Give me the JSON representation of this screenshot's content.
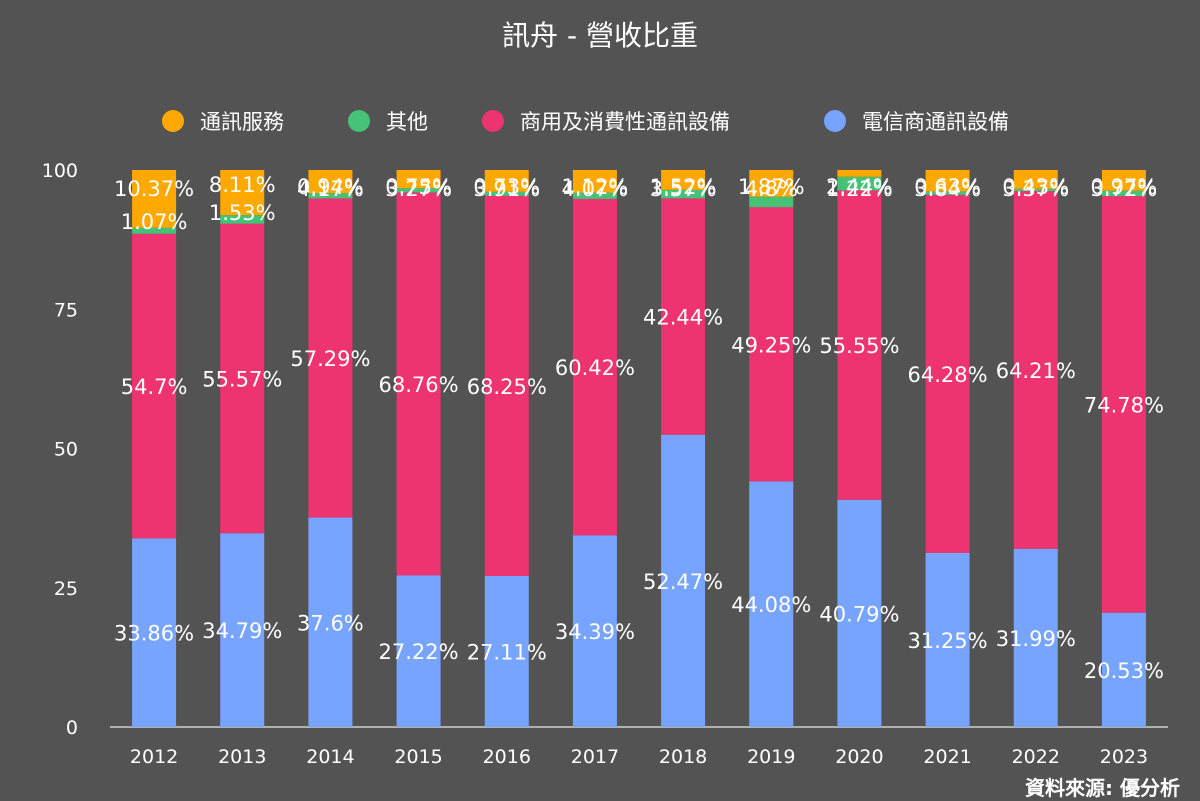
{
  "title": "訊舟 - 營收比重",
  "source_note": "資料來源: 優分析",
  "colors": {
    "background": "#535353",
    "axis": "#cfcfcf",
    "gridline": "#8a8a8a",
    "text": "#ffffff"
  },
  "chart_data": {
    "type": "bar",
    "stacked": true,
    "categories": [
      "2012",
      "2013",
      "2014",
      "2015",
      "2016",
      "2017",
      "2018",
      "2019",
      "2020",
      "2021",
      "2022",
      "2023"
    ],
    "ylim": [
      0,
      100
    ],
    "yticks": [
      0,
      25,
      50,
      75,
      100
    ],
    "legend_position": "top",
    "series": [
      {
        "name": "通訊服務",
        "color": "#FFA800",
        "values": [
          10.37,
          8.11,
          4.17,
          3.27,
          3.91,
          4.07,
          3.57,
          4.8,
          1.22,
          3.84,
          3.37,
          3.72
        ],
        "labels": [
          "10.37%",
          "8.11%",
          "4.17%",
          "3.27%",
          "3.91%",
          "4.07%",
          "3.57%",
          "4.8%",
          "1.22%",
          "3.84%",
          "3.37%",
          "3.72%"
        ]
      },
      {
        "name": "其他",
        "color": "#46C277",
        "values": [
          1.07,
          1.53,
          0.94,
          0.75,
          0.73,
          1.12,
          1.52,
          1.87,
          2.44,
          0.63,
          0.43,
          0.97
        ],
        "labels": [
          "1.07%",
          "1.53%",
          "0.94%",
          "0.75%",
          "0.73%",
          "1.12%",
          "1.52%",
          "1.87%",
          "2.44%",
          "0.63%",
          "0.43%",
          "0.97%"
        ]
      },
      {
        "name": "商用及消費性通訊設備",
        "color": "#EE3371",
        "values": [
          54.7,
          55.57,
          57.29,
          68.76,
          68.25,
          60.42,
          42.44,
          49.25,
          55.55,
          64.28,
          64.21,
          74.78
        ],
        "labels": [
          "54.7%",
          "55.57%",
          "57.29%",
          "68.76%",
          "68.25%",
          "60.42%",
          "42.44%",
          "49.25%",
          "55.55%",
          "64.28%",
          "64.21%",
          "74.78%"
        ]
      },
      {
        "name": "電信商通訊設備",
        "color": "#77A4FF",
        "values": [
          33.86,
          34.79,
          37.6,
          27.22,
          27.11,
          34.39,
          52.47,
          44.08,
          40.79,
          31.25,
          31.99,
          20.53
        ],
        "labels": [
          "33.86%",
          "34.79%",
          "37.6%",
          "27.22%",
          "27.11%",
          "34.39%",
          "52.47%",
          "44.08%",
          "40.79%",
          "31.25%",
          "31.99%",
          "20.53%"
        ]
      }
    ]
  }
}
